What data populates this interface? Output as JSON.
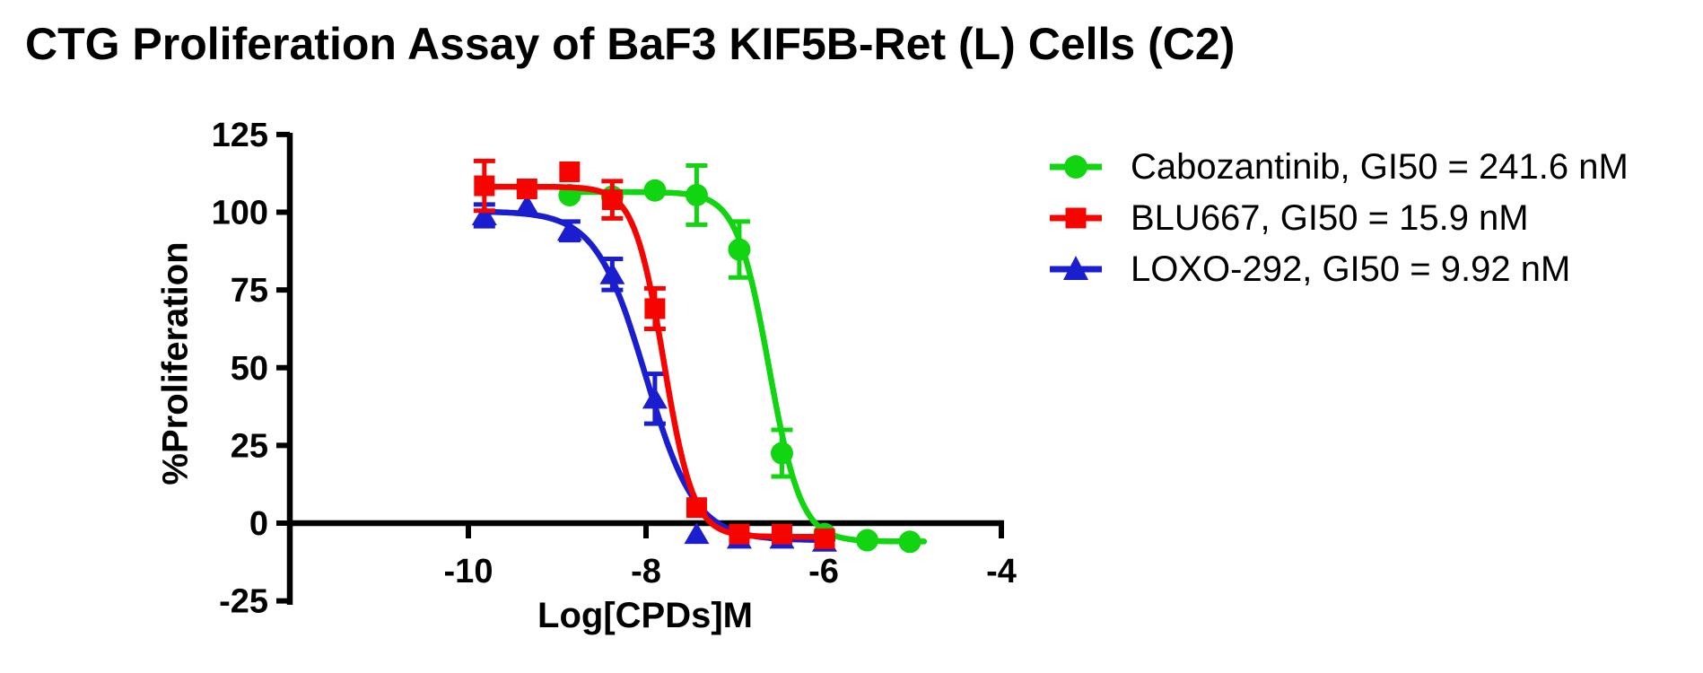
{
  "title": "CTG Proliferation Assay of BaF3 KIF5B-Ret (L) Cells (C2)",
  "chart_data": {
    "type": "scatter",
    "title": "CTG Proliferation Assay of BaF3 KIF5B-Ret (L) Cells (C2)",
    "xlabel": "Log[CPDs]M",
    "ylabel": "%Proliferation",
    "x_ticks": [
      -10,
      -8,
      -6,
      -4
    ],
    "y_ticks": [
      125,
      100,
      75,
      50,
      25,
      0,
      -25
    ],
    "xlim": [
      -12,
      -4
    ],
    "ylim": [
      -25,
      125
    ],
    "grid": false,
    "legend_position": "right-outside",
    "series": [
      {
        "name": "Cabozantinib",
        "gi50": "241.6 nM",
        "legend_label": "Cabozantinib, GI50 = 241.6 nM",
        "color": "#10D510",
        "marker": "circle",
        "x": [
          -8.86,
          -8.38,
          -7.9,
          -7.43,
          -6.95,
          -6.47,
          -5.99,
          -5.51,
          -5.03
        ],
        "y": [
          105.5,
          105.0,
          107.0,
          105.5,
          88.0,
          22.5,
          -3.5,
          -5.5,
          -6.0
        ],
        "yerr": [
          0,
          0,
          0,
          9.5,
          9.0,
          7.5,
          0,
          0,
          0
        ],
        "fit": {
          "top": 106.5,
          "bottom": -5.9,
          "log_gi50": -6.617,
          "hill": 2.4,
          "curve_range": [
            -8.88,
            -4.87
          ]
        }
      },
      {
        "name": "BLU667",
        "gi50": "15.9 nM",
        "legend_label": "BLU667, GI50 = 15.9 nM",
        "color": "#F50400",
        "marker": "square",
        "x": [
          -9.82,
          -9.34,
          -8.86,
          -8.38,
          -7.9,
          -7.43,
          -6.95,
          -6.47,
          -5.99
        ],
        "y": [
          108.5,
          107.5,
          113.0,
          104.0,
          69.0,
          5.0,
          -3.5,
          -3.5,
          -5.0
        ],
        "yerr": [
          8.0,
          0,
          0,
          6.0,
          6.5,
          0,
          0,
          0,
          0
        ],
        "fit": {
          "top": 108.2,
          "bottom": -4.4,
          "log_gi50": -7.8,
          "hill": 2.6,
          "curve_range": [
            -9.85,
            -5.9
          ]
        }
      },
      {
        "name": "LOXO-292",
        "gi50": "9.92 nM",
        "legend_label": "LOXO-292, GI50 = 9.92 nM",
        "color": "#1A1ECF",
        "marker": "triangle",
        "x": [
          -9.82,
          -9.34,
          -8.86,
          -8.38,
          -7.9,
          -7.43,
          -6.95,
          -6.47,
          -5.99
        ],
        "y": [
          99.0,
          102.0,
          94.0,
          80.0,
          40.0,
          -3.5,
          -5.0,
          -5.0,
          -6.0
        ],
        "yerr": [
          3.5,
          0,
          3.0,
          5.0,
          8.0,
          0,
          0,
          0,
          0
        ],
        "fit": {
          "top": 100.3,
          "bottom": -5.5,
          "log_gi50": -8.004,
          "hill": 1.55,
          "curve_range": [
            -9.85,
            -5.9
          ]
        }
      }
    ]
  }
}
